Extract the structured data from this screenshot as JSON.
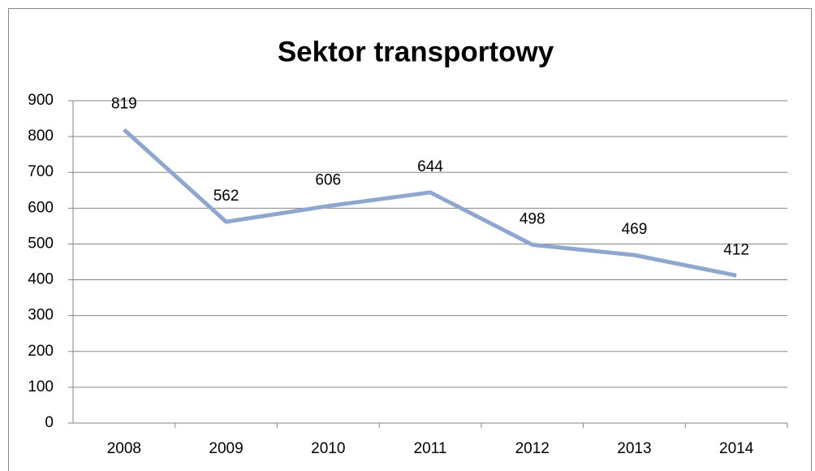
{
  "chart_data": {
    "type": "line",
    "title": "Sektor transportowy",
    "categories": [
      "2008",
      "2009",
      "2010",
      "2011",
      "2012",
      "2013",
      "2014"
    ],
    "values": [
      819,
      562,
      606,
      644,
      498,
      469,
      412
    ],
    "color": "#8fa6cf",
    "ylim": [
      0,
      900
    ],
    "yticks": [
      0,
      100,
      200,
      300,
      400,
      500,
      600,
      700,
      800,
      900
    ],
    "grid": true
  }
}
